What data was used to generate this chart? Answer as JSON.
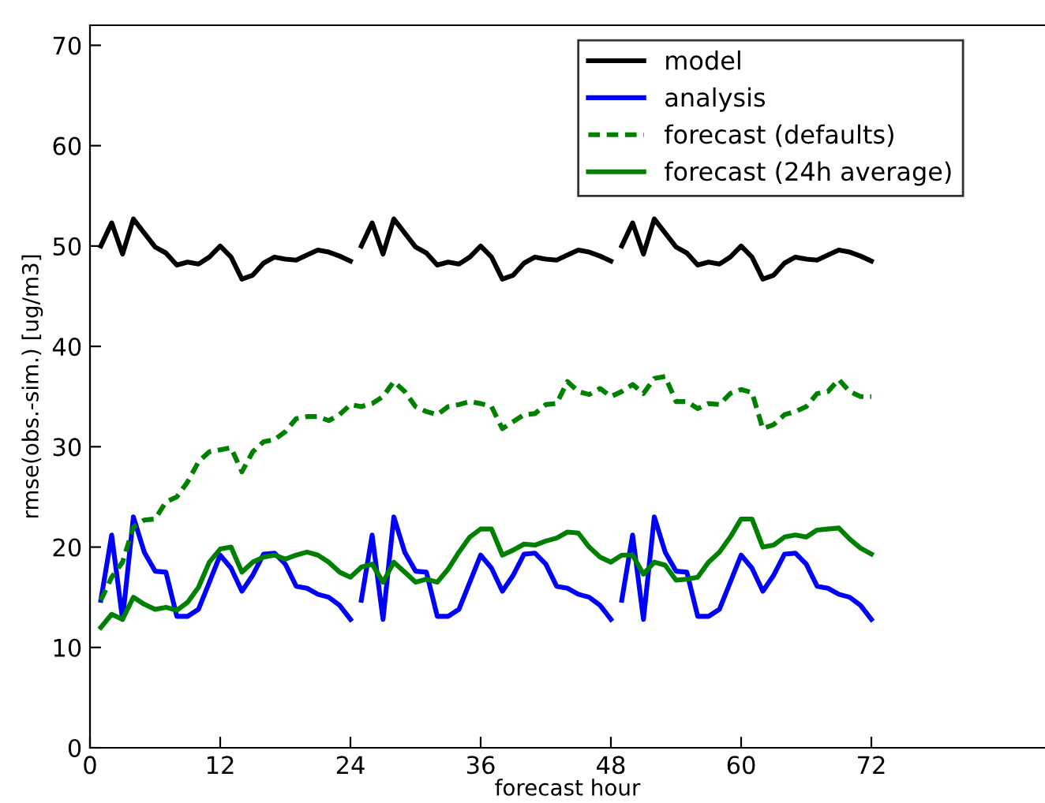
{
  "chart_data": {
    "type": "line",
    "xlabel": "forecast hour",
    "ylabel": "rmse(obs.-sim.) [ug/m3]",
    "xlim": [
      0,
      88
    ],
    "xticks": [
      0,
      12,
      24,
      36,
      48,
      60,
      72
    ],
    "ylim": [
      0,
      72
    ],
    "yticks": [
      0,
      10,
      20,
      30,
      40,
      50,
      60,
      70
    ],
    "grid": false,
    "legend": "top right",
    "marker": "none",
    "series": [
      {
        "name": "model",
        "color": "#000000",
        "line_style": "solid",
        "x": [
          1,
          2,
          3,
          4,
          5,
          6,
          7,
          8,
          9,
          10,
          11,
          12,
          13,
          14,
          15,
          16,
          17,
          18,
          19,
          20,
          21,
          22,
          23,
          24,
          24.5,
          25,
          26,
          27,
          28,
          29,
          30,
          31,
          32,
          33,
          34,
          35,
          36,
          37,
          38,
          39,
          40,
          41,
          42,
          43,
          44,
          45,
          46,
          47,
          48,
          48.5,
          49,
          50,
          51,
          52,
          53,
          54,
          55,
          56,
          57,
          58,
          59,
          60,
          61,
          62,
          63,
          64,
          65,
          66,
          67,
          68,
          69,
          70,
          71,
          72
        ],
        "values": [
          50,
          52.3,
          49.2,
          52.7,
          51.3,
          49.9,
          49.3,
          48.1,
          48.4,
          48.2,
          48.9,
          50.0,
          48.9,
          46.7,
          47.1,
          48.3,
          48.9,
          48.7,
          48.6,
          49.1,
          49.6,
          49.4,
          49.0,
          48.5,
          null,
          50,
          52.3,
          49.2,
          52.7,
          51.3,
          49.9,
          49.3,
          48.1,
          48.4,
          48.2,
          48.9,
          50.0,
          48.9,
          46.7,
          47.1,
          48.3,
          48.9,
          48.7,
          48.6,
          49.1,
          49.6,
          49.4,
          49.0,
          48.5,
          null,
          50,
          52.3,
          49.2,
          52.7,
          51.3,
          49.9,
          49.3,
          48.1,
          48.4,
          48.2,
          48.9,
          50.0,
          48.9,
          46.7,
          47.1,
          48.3,
          48.9,
          48.7,
          48.6,
          49.1,
          49.6,
          49.4,
          49.0,
          48.5
        ]
      },
      {
        "name": "analysis",
        "color": "#0000ff",
        "line_style": "solid",
        "x": [
          1,
          2,
          3,
          4,
          5,
          6,
          7,
          8,
          9,
          10,
          11,
          12,
          13,
          14,
          15,
          16,
          17,
          18,
          19,
          20,
          21,
          22,
          23,
          24,
          24.5,
          25,
          26,
          27,
          28,
          29,
          30,
          31,
          32,
          33,
          34,
          35,
          36,
          37,
          38,
          39,
          40,
          41,
          42,
          43,
          44,
          45,
          46,
          47,
          48,
          48.5,
          49,
          50,
          51,
          52,
          53,
          54,
          55,
          56,
          57,
          58,
          59,
          60,
          61,
          62,
          63,
          64,
          65,
          66,
          67,
          68,
          69,
          70,
          71,
          72
        ],
        "values": [
          14.7,
          21.2,
          12.8,
          23,
          19.5,
          17.6,
          17.5,
          13.1,
          13.1,
          13.8,
          16.5,
          19.2,
          17.9,
          15.6,
          17.2,
          19.3,
          19.4,
          18.3,
          16.1,
          15.9,
          15.3,
          15.0,
          14.2,
          12.8,
          null,
          14.7,
          21.2,
          12.8,
          23,
          19.5,
          17.6,
          17.5,
          13.1,
          13.1,
          13.8,
          16.5,
          19.2,
          17.9,
          15.6,
          17.2,
          19.3,
          19.4,
          18.3,
          16.1,
          15.9,
          15.3,
          15.0,
          14.2,
          12.8,
          null,
          14.7,
          21.2,
          12.8,
          23,
          19.5,
          17.6,
          17.5,
          13.1,
          13.1,
          13.8,
          16.5,
          19.2,
          17.9,
          15.6,
          17.2,
          19.3,
          19.4,
          18.3,
          16.1,
          15.9,
          15.3,
          15.0,
          14.2,
          12.8
        ]
      },
      {
        "name": "forecast (defaults)",
        "color": "#008000",
        "line_style": "dashed",
        "x": [
          1,
          2,
          3,
          4,
          5,
          6,
          7,
          8,
          9,
          10,
          11,
          12,
          13,
          14,
          15,
          16,
          17,
          18,
          19,
          20,
          21,
          22,
          23,
          24,
          25,
          26,
          27,
          28,
          29,
          30,
          31,
          32,
          33,
          34,
          35,
          36,
          37,
          38,
          39,
          40,
          41,
          42,
          43,
          44,
          45,
          46,
          47,
          48,
          49,
          50,
          51,
          52,
          53,
          54,
          55,
          56,
          57,
          58,
          59,
          60,
          61,
          62,
          63,
          64,
          65,
          66,
          67,
          68,
          69,
          70,
          71,
          72
        ],
        "values": [
          14.7,
          17,
          18.5,
          22,
          22.7,
          22.8,
          24.5,
          25,
          26.5,
          28.5,
          29.5,
          29.7,
          29.9,
          27.5,
          29.5,
          30.5,
          30.7,
          31.5,
          32.8,
          33,
          33,
          32.6,
          33.2,
          34.2,
          34,
          34.3,
          35,
          36.5,
          35.5,
          34,
          33.5,
          33.2,
          34,
          34.2,
          34.5,
          34.3,
          34,
          31.8,
          32.5,
          33.2,
          33.3,
          34.2,
          34.3,
          36.5,
          35.5,
          35.2,
          35.8,
          35,
          35.5,
          36.2,
          35.3,
          36.8,
          37,
          34.5,
          34.5,
          33.8,
          34.3,
          34.2,
          35.3,
          35.7,
          35.4,
          31.8,
          32.2,
          33.2,
          33.5,
          34,
          35.3,
          35.5,
          36.7,
          35.5,
          35,
          35
        ]
      },
      {
        "name": "forecast (24h average)",
        "color": "#008000",
        "line_style": "solid",
        "x": [
          1,
          2,
          3,
          4,
          5,
          6,
          7,
          8,
          9,
          10,
          11,
          12,
          13,
          14,
          15,
          16,
          17,
          18,
          19,
          20,
          21,
          22,
          23,
          24,
          25,
          26,
          27,
          28,
          29,
          30,
          31,
          32,
          33,
          34,
          35,
          36,
          37,
          38,
          39,
          40,
          41,
          42,
          43,
          44,
          45,
          46,
          47,
          48,
          49,
          50,
          51,
          52,
          53,
          54,
          55,
          56,
          57,
          58,
          59,
          60,
          61,
          62,
          63,
          64,
          65,
          66,
          67,
          68,
          69,
          70,
          71,
          72
        ],
        "values": [
          12,
          13.3,
          12.8,
          15,
          14.3,
          13.8,
          14,
          13.7,
          14.5,
          16,
          18.5,
          19.8,
          20,
          17.5,
          18.5,
          19,
          19.2,
          18.8,
          19.2,
          19.5,
          19.2,
          18.5,
          17.5,
          17,
          18,
          18.3,
          16.5,
          18.5,
          17.5,
          16.5,
          16.8,
          16.5,
          17.8,
          19.5,
          21,
          21.8,
          21.8,
          19.2,
          19.7,
          20.3,
          20.2,
          20.6,
          20.9,
          21.5,
          21.4,
          20,
          19,
          18.5,
          19.2,
          19.2,
          17.3,
          18.5,
          18.2,
          16.7,
          16.8,
          17,
          18.5,
          19.5,
          21,
          22.8,
          22.8,
          20,
          20.2,
          21,
          21.2,
          21,
          21.7,
          21.8,
          21.9,
          20.8,
          19.9,
          19.3
        ]
      }
    ]
  }
}
